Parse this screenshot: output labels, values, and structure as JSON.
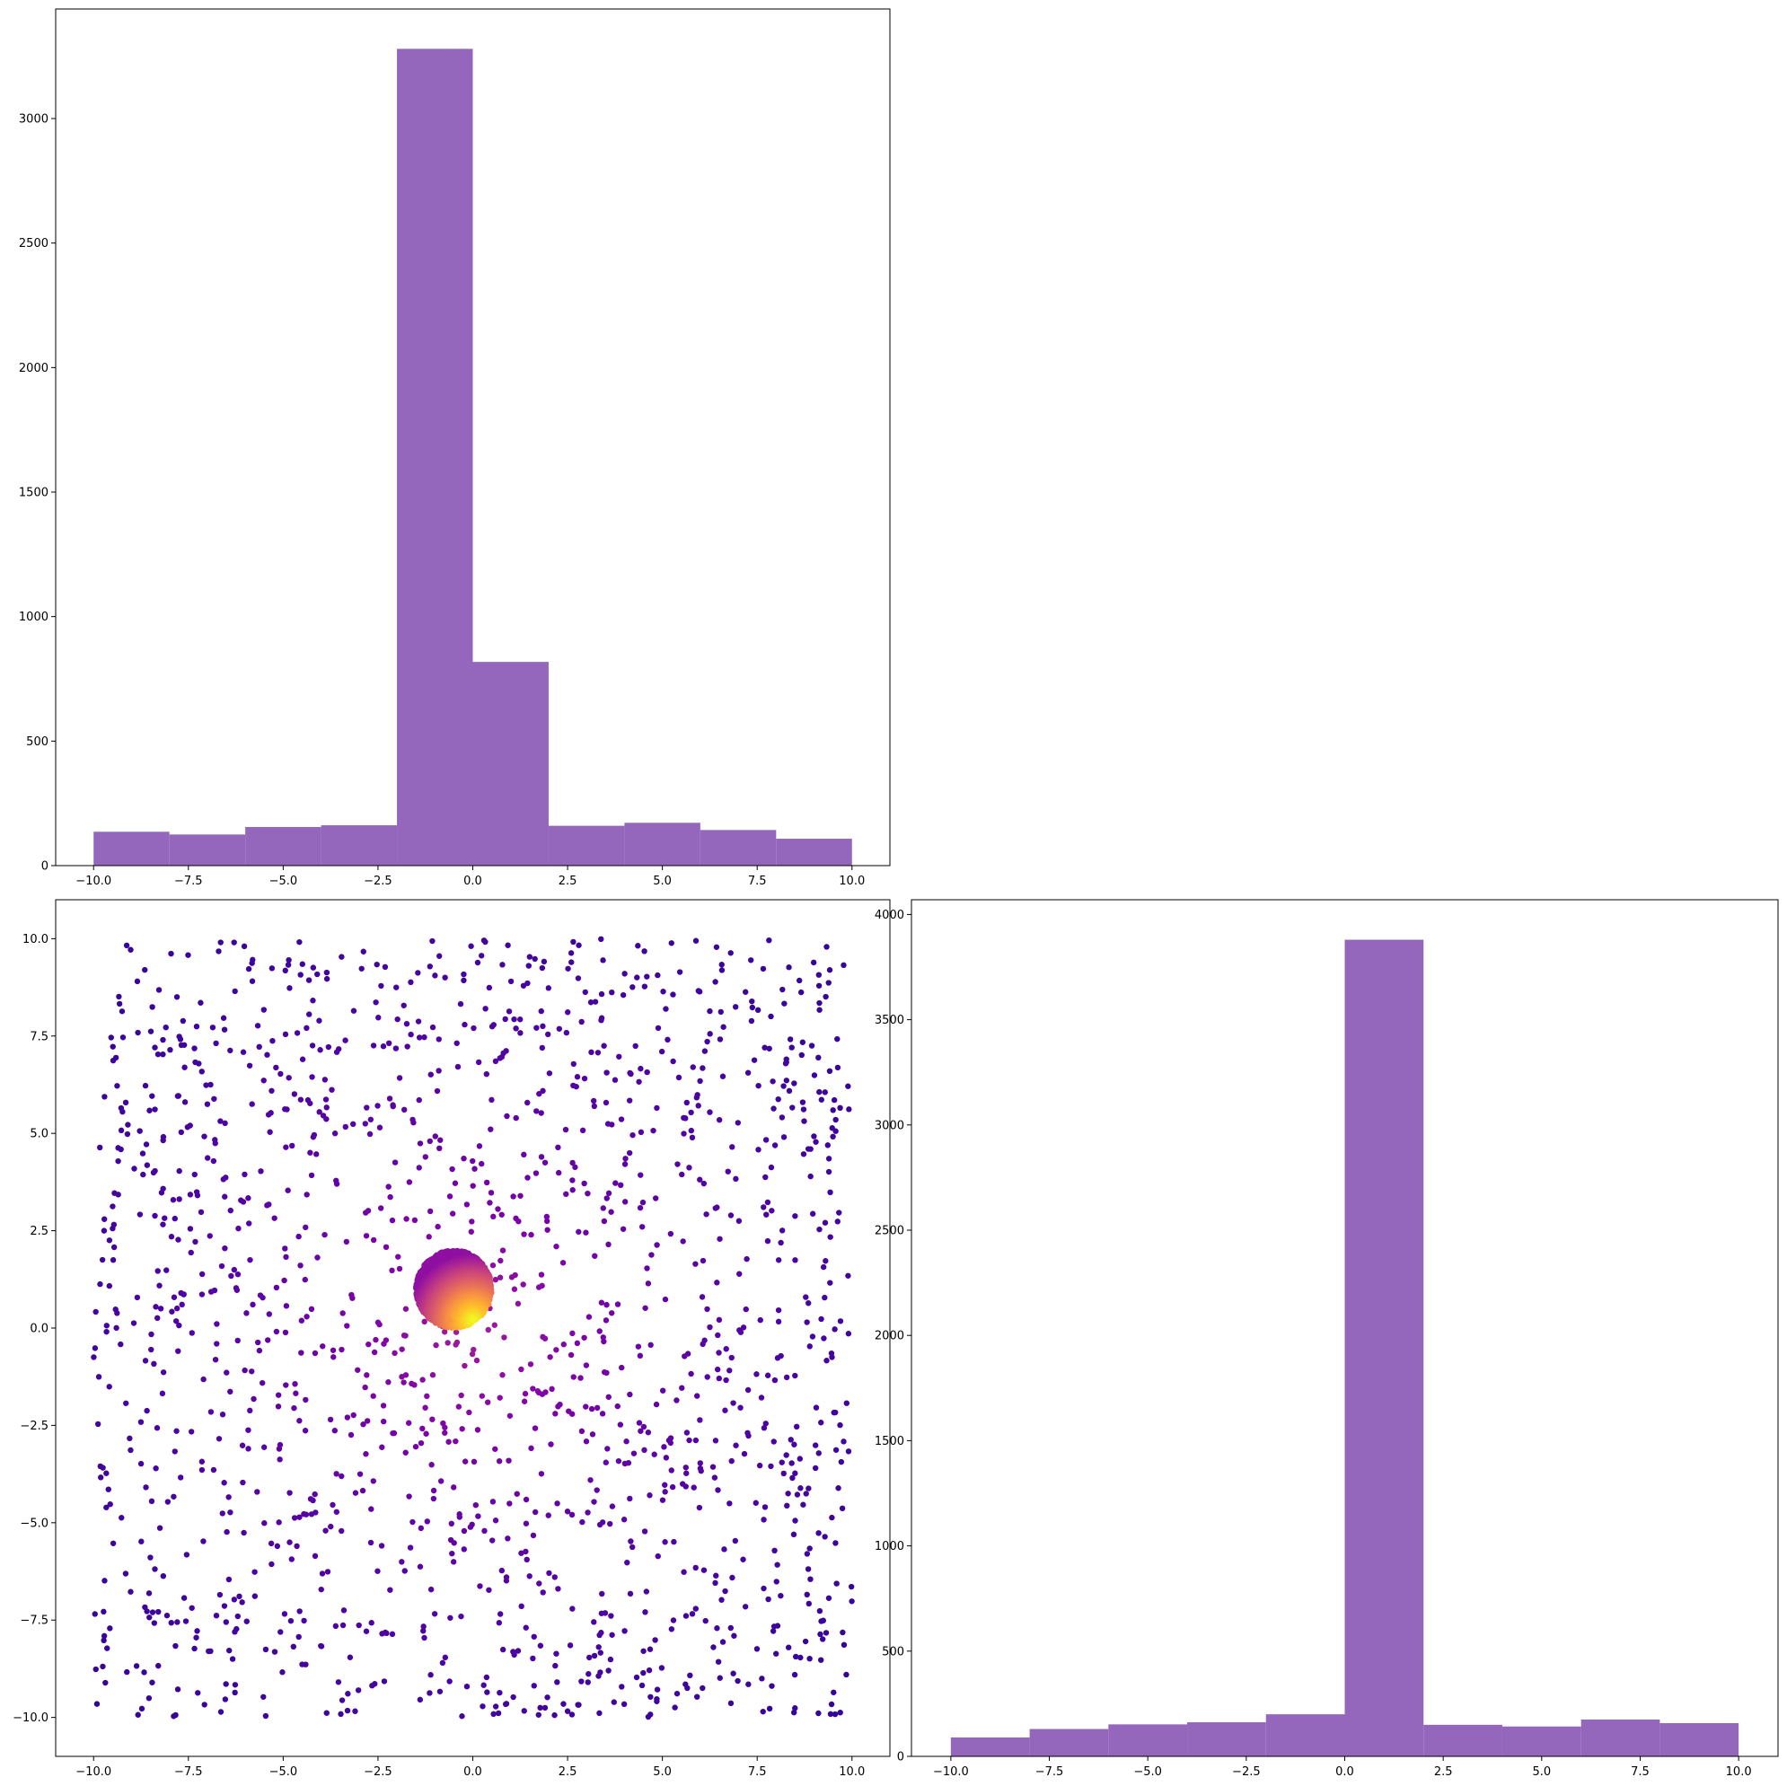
{
  "chart_data": [
    {
      "type": "bar",
      "panel": "top-left",
      "bin_edges": [
        -10,
        -8,
        -6,
        -4,
        -2,
        0,
        2,
        4,
        6,
        8,
        10
      ],
      "values": [
        136,
        125,
        155,
        162,
        3280,
        818,
        160,
        172,
        143,
        108
      ],
      "xlim": [
        -11,
        11
      ],
      "ylim": [
        0,
        3440
      ],
      "xticks": [
        -10.0,
        -7.5,
        -5.0,
        -2.5,
        0.0,
        2.5,
        5.0,
        7.5,
        10.0
      ],
      "xtick_labels": [
        "−10.0",
        "−7.5",
        "−5.0",
        "−2.5",
        "0.0",
        "2.5",
        "5.0",
        "7.5",
        "10.0"
      ],
      "yticks": [
        0,
        500,
        1000,
        1500,
        2000,
        2500,
        3000
      ],
      "ytick_labels": [
        "0",
        "500",
        "1000",
        "1500",
        "2000",
        "2500",
        "3000"
      ],
      "color": "#9467bd",
      "grid": false
    },
    {
      "type": "scatter",
      "panel": "bottom-left",
      "xlim": [
        -11,
        11
      ],
      "ylim": [
        -11,
        11
      ],
      "xticks": [
        -10.0,
        -7.5,
        -5.0,
        -2.5,
        0.0,
        2.5,
        5.0,
        7.5,
        10.0
      ],
      "xtick_labels": [
        "−10.0",
        "−7.5",
        "−5.0",
        "−2.5",
        "0.0",
        "2.5",
        "5.0",
        "7.5",
        "10.0"
      ],
      "yticks": [
        10.0,
        7.5,
        5.0,
        2.5,
        0.0,
        -2.5,
        -5.0,
        -7.5,
        -10.0
      ],
      "ytick_labels": [
        "10.0",
        "7.5",
        "5.0",
        "2.5",
        "0.0",
        "−2.5",
        "−5.0",
        "−7.5",
        "−10.0"
      ],
      "colormap": "plasma",
      "uniform_points": {
        "count": 1500,
        "x_range": [
          -10,
          10
        ],
        "y_range": [
          -10,
          10
        ]
      },
      "cluster": {
        "count": 3000,
        "center": [
          -0.5,
          1.0
        ],
        "radius": 1.0,
        "peak": [
          0.0,
          0.2
        ]
      },
      "grid": false
    },
    {
      "type": "bar",
      "panel": "bottom-right",
      "bin_edges": [
        -10,
        -8,
        -6,
        -4,
        -2,
        0,
        2,
        4,
        6,
        8,
        10
      ],
      "values": [
        90,
        130,
        152,
        162,
        200,
        3880,
        150,
        142,
        175,
        158
      ],
      "xlim": [
        -11,
        11
      ],
      "ylim": [
        0,
        4070
      ],
      "xticks": [
        -10.0,
        -7.5,
        -5.0,
        -2.5,
        0.0,
        2.5,
        5.0,
        7.5,
        10.0
      ],
      "xtick_labels": [
        "−10.0",
        "−7.5",
        "−5.0",
        "−2.5",
        "0.0",
        "2.5",
        "5.0",
        "7.5",
        "10.0"
      ],
      "yticks": [
        0,
        500,
        1000,
        1500,
        2000,
        2500,
        3000,
        3500,
        4000
      ],
      "ytick_labels": [
        "0",
        "500",
        "1000",
        "1500",
        "2000",
        "2500",
        "3000",
        "3500",
        "4000"
      ],
      "color": "#9467bd",
      "grid": false
    }
  ]
}
